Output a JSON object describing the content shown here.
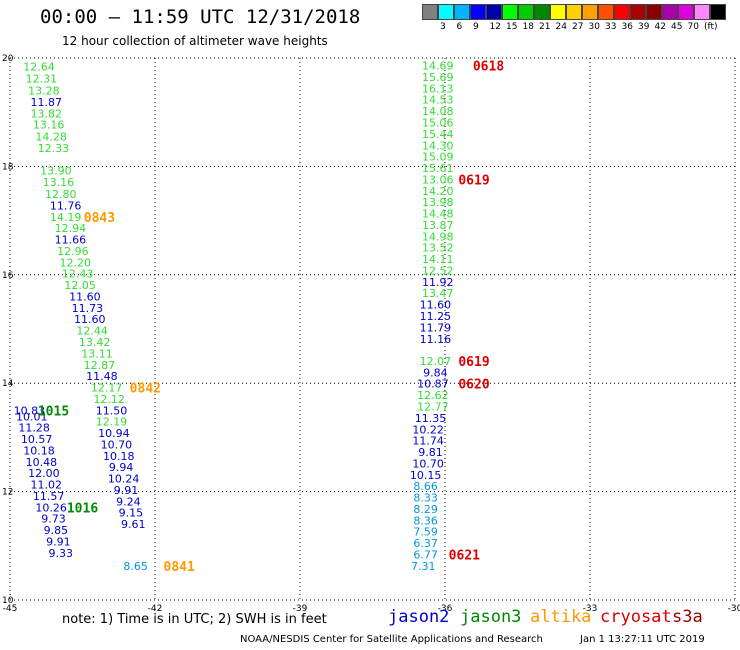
{
  "header": {
    "title": "00:00 – 11:59 UTC 12/31/2018",
    "subtitle": "12 hour collection of altimeter wave heights"
  },
  "legend": {
    "colors": [
      "#808080",
      "#00ffff",
      "#00b4ff",
      "#0000ff",
      "#0000aa",
      "#00ff00",
      "#00cc00",
      "#008800",
      "#ffff00",
      "#ffd000",
      "#ffa000",
      "#ff5000",
      "#ff0000",
      "#aa0000",
      "#880000",
      "#aa00aa",
      "#dd00dd",
      "#ff88ff",
      "#000000"
    ],
    "labels": [
      "3",
      "6",
      "9",
      "12",
      "15",
      "18",
      "21",
      "24",
      "27",
      "30",
      "33",
      "36",
      "39",
      "42",
      "45",
      "70",
      "(ft)"
    ]
  },
  "footer": {
    "note": "note: 1) Time is in UTC; 2) SWH is in feet",
    "satellites": [
      {
        "name": "jason2",
        "color": "#0000cc"
      },
      {
        "name": "jason3",
        "color": "#008800"
      },
      {
        "name": "altika",
        "color": "#ff9900"
      },
      {
        "name": "cryosat",
        "color": "#dd0000"
      },
      {
        "name": "s3a",
        "color": "#990000"
      }
    ],
    "credit": "NOAA/NESDIS Center for Satellite Applications and Research",
    "timestamp": "Jan  1 13:27:11 UTC 2019"
  },
  "chart_data": {
    "type": "scatter",
    "xlim": [
      -45,
      -30
    ],
    "ylim": [
      10,
      20
    ],
    "xticks": [
      "-45",
      "-42",
      "-39",
      "-36",
      "-33",
      "-30"
    ],
    "yticks": [
      "10",
      "12",
      "14",
      "16",
      "18",
      "20"
    ],
    "grid": true,
    "series": [
      {
        "name": "jason3",
        "color": "#33dd33",
        "points": [
          {
            "x": -44.4,
            "y": 19.84,
            "v": "12.64"
          },
          {
            "x": -44.35,
            "y": 19.62,
            "v": "12.31"
          },
          {
            "x": -44.3,
            "y": 19.4,
            "v": "13.28"
          },
          {
            "x": -44.25,
            "y": 18.98,
            "v": "13.82"
          },
          {
            "x": -44.2,
            "y": 18.77,
            "v": "13.16"
          },
          {
            "x": -44.15,
            "y": 18.55,
            "v": "14.28"
          },
          {
            "x": -44.1,
            "y": 18.34,
            "v": "12.33"
          },
          {
            "x": -44.05,
            "y": 17.92,
            "v": "13.90"
          },
          {
            "x": -44.0,
            "y": 17.71,
            "v": "13.16"
          },
          {
            "x": -43.95,
            "y": 17.49,
            "v": "12.80"
          },
          {
            "x": -43.85,
            "y": 17.07,
            "v": "14.19"
          },
          {
            "x": -43.75,
            "y": 16.86,
            "v": "12.94"
          },
          {
            "x": -43.7,
            "y": 16.44,
            "v": "12.96"
          },
          {
            "x": -43.65,
            "y": 16.23,
            "v": "12.20"
          },
          {
            "x": -43.6,
            "y": 16.02,
            "v": "12.43"
          },
          {
            "x": -43.55,
            "y": 15.81,
            "v": "12.05"
          },
          {
            "x": -43.3,
            "y": 14.97,
            "v": "12.44"
          },
          {
            "x": -43.25,
            "y": 14.76,
            "v": "13.42"
          },
          {
            "x": -43.2,
            "y": 14.55,
            "v": "13.11"
          },
          {
            "x": -43.15,
            "y": 14.34,
            "v": "12.87"
          },
          {
            "x": -43.0,
            "y": 13.92,
            "v": "12.17"
          },
          {
            "x": -42.95,
            "y": 13.71,
            "v": "12.12"
          },
          {
            "x": -42.9,
            "y": 13.29,
            "v": "12.19"
          },
          {
            "x": -36.15,
            "y": 19.86,
            "v": "14.69"
          },
          {
            "x": -36.15,
            "y": 19.65,
            "v": "15.69"
          },
          {
            "x": -36.15,
            "y": 19.44,
            "v": "16.13"
          },
          {
            "x": -36.15,
            "y": 19.23,
            "v": "14.53"
          },
          {
            "x": -36.15,
            "y": 19.02,
            "v": "14.08"
          },
          {
            "x": -36.15,
            "y": 18.81,
            "v": "15.06"
          },
          {
            "x": -36.15,
            "y": 18.6,
            "v": "15.44"
          },
          {
            "x": -36.15,
            "y": 18.39,
            "v": "14.30"
          },
          {
            "x": -36.15,
            "y": 18.18,
            "v": "15.09"
          },
          {
            "x": -36.15,
            "y": 17.97,
            "v": "15.61"
          },
          {
            "x": -36.15,
            "y": 17.76,
            "v": "13.06"
          },
          {
            "x": -36.15,
            "y": 17.55,
            "v": "14.20"
          },
          {
            "x": -36.15,
            "y": 17.34,
            "v": "13.98"
          },
          {
            "x": -36.15,
            "y": 17.13,
            "v": "14.48"
          },
          {
            "x": -36.15,
            "y": 16.92,
            "v": "13.87"
          },
          {
            "x": -36.15,
            "y": 16.71,
            "v": "14.98"
          },
          {
            "x": -36.15,
            "y": 16.5,
            "v": "13.52"
          },
          {
            "x": -36.15,
            "y": 16.29,
            "v": "14.11"
          },
          {
            "x": -36.15,
            "y": 16.08,
            "v": "12.52"
          },
          {
            "x": -36.15,
            "y": 15.66,
            "v": "13.47"
          },
          {
            "x": -36.2,
            "y": 14.41,
            "v": "12.07"
          },
          {
            "x": -36.25,
            "y": 13.78,
            "v": "12.62"
          },
          {
            "x": -36.25,
            "y": 13.57,
            "v": "12.77"
          }
        ]
      },
      {
        "name": "jason2",
        "color": "#0000cc",
        "points": [
          {
            "x": -44.25,
            "y": 19.19,
            "v": "11.87"
          },
          {
            "x": -43.85,
            "y": 17.28,
            "v": "11.76"
          },
          {
            "x": -43.75,
            "y": 16.65,
            "v": "11.66"
          },
          {
            "x": -43.45,
            "y": 15.6,
            "v": "11.60"
          },
          {
            "x": -43.4,
            "y": 15.39,
            "v": "11.73"
          },
          {
            "x": -43.35,
            "y": 15.18,
            "v": "11.60"
          },
          {
            "x": -43.1,
            "y": 14.13,
            "v": "11.48"
          },
          {
            "x": -42.9,
            "y": 13.5,
            "v": "11.50"
          },
          {
            "x": -42.85,
            "y": 13.08,
            "v": "10.94"
          },
          {
            "x": -42.8,
            "y": 12.87,
            "v": "10.70"
          },
          {
            "x": -42.75,
            "y": 12.66,
            "v": "10.18"
          },
          {
            "x": -42.7,
            "y": 12.45,
            "v": "9.94"
          },
          {
            "x": -42.65,
            "y": 12.24,
            "v": "10.24"
          },
          {
            "x": -42.6,
            "y": 12.03,
            "v": "9.91"
          },
          {
            "x": -42.55,
            "y": 11.82,
            "v": "9.24"
          },
          {
            "x": -42.5,
            "y": 11.61,
            "v": "9.15"
          },
          {
            "x": -42.45,
            "y": 11.4,
            "v": "9.61"
          },
          {
            "x": -44.6,
            "y": 13.5,
            "v": "10.83"
          },
          {
            "x": -44.55,
            "y": 13.39,
            "v": "10.01"
          },
          {
            "x": -44.5,
            "y": 13.18,
            "v": "11.28"
          },
          {
            "x": -44.45,
            "y": 12.97,
            "v": "10.57"
          },
          {
            "x": -44.4,
            "y": 12.76,
            "v": "10.18"
          },
          {
            "x": -44.35,
            "y": 12.55,
            "v": "10.48"
          },
          {
            "x": -44.3,
            "y": 12.34,
            "v": "12.00"
          },
          {
            "x": -44.25,
            "y": 12.13,
            "v": "11.02"
          },
          {
            "x": -44.2,
            "y": 11.92,
            "v": "11.57"
          },
          {
            "x": -44.15,
            "y": 11.71,
            "v": "10.26"
          },
          {
            "x": -44.1,
            "y": 11.5,
            "v": "9.73"
          },
          {
            "x": -44.05,
            "y": 11.29,
            "v": "9.85"
          },
          {
            "x": -44.0,
            "y": 11.08,
            "v": "9.91"
          },
          {
            "x": -43.95,
            "y": 10.87,
            "v": "9.33"
          },
          {
            "x": -36.15,
            "y": 15.87,
            "v": "11.92"
          },
          {
            "x": -36.2,
            "y": 15.45,
            "v": "11.60"
          },
          {
            "x": -36.2,
            "y": 15.24,
            "v": "11.25"
          },
          {
            "x": -36.2,
            "y": 15.03,
            "v": "11.79"
          },
          {
            "x": -36.2,
            "y": 14.82,
            "v": "11.16"
          },
          {
            "x": -36.2,
            "y": 14.2,
            "v": "9.84"
          },
          {
            "x": -36.25,
            "y": 13.99,
            "v": "10.87"
          },
          {
            "x": -36.3,
            "y": 13.36,
            "v": "11.35"
          },
          {
            "x": -36.35,
            "y": 13.15,
            "v": "10.22"
          },
          {
            "x": -36.35,
            "y": 12.94,
            "v": "11.74"
          },
          {
            "x": -36.3,
            "y": 12.73,
            "v": "9.81"
          },
          {
            "x": -36.35,
            "y": 12.52,
            "v": "10.70"
          },
          {
            "x": -36.4,
            "y": 12.31,
            "v": "10.15"
          }
        ]
      },
      {
        "name": "jason2-low",
        "color": "#0099dd",
        "points": [
          {
            "x": -36.4,
            "y": 12.1,
            "v": "8.66"
          },
          {
            "x": -36.4,
            "y": 11.89,
            "v": "8.33"
          },
          {
            "x": -36.4,
            "y": 11.68,
            "v": "8.29"
          },
          {
            "x": -36.4,
            "y": 11.47,
            "v": "8.36"
          },
          {
            "x": -36.4,
            "y": 11.26,
            "v": "7.59"
          },
          {
            "x": -36.4,
            "y": 11.05,
            "v": "6.37"
          },
          {
            "x": -36.4,
            "y": 10.84,
            "v": "6.77"
          },
          {
            "x": -36.45,
            "y": 10.63,
            "v": "7.31"
          },
          {
            "x": -42.4,
            "y": 10.63,
            "v": "8.65"
          }
        ]
      }
    ],
    "time_labels": [
      {
        "x": -43.15,
        "y": 17.07,
        "text": "0843",
        "color": "#ff9900"
      },
      {
        "x": -42.2,
        "y": 13.92,
        "text": "0842",
        "color": "#ff9900"
      },
      {
        "x": -41.5,
        "y": 10.63,
        "text": "0841",
        "color": "#ff9900"
      },
      {
        "x": -44.1,
        "y": 13.5,
        "text": "1015",
        "color": "#008800"
      },
      {
        "x": -43.5,
        "y": 11.71,
        "text": "1016",
        "color": "#008800"
      },
      {
        "x": -35.1,
        "y": 19.86,
        "text": "0618",
        "color": "#dd0000"
      },
      {
        "x": -35.4,
        "y": 17.76,
        "text": "0619",
        "color": "#dd0000"
      },
      {
        "x": -35.4,
        "y": 14.41,
        "text": "0619",
        "color": "#dd0000"
      },
      {
        "x": -35.4,
        "y": 13.99,
        "text": "0620",
        "color": "#dd0000"
      },
      {
        "x": -35.6,
        "y": 10.84,
        "text": "0621",
        "color": "#dd0000"
      }
    ]
  }
}
